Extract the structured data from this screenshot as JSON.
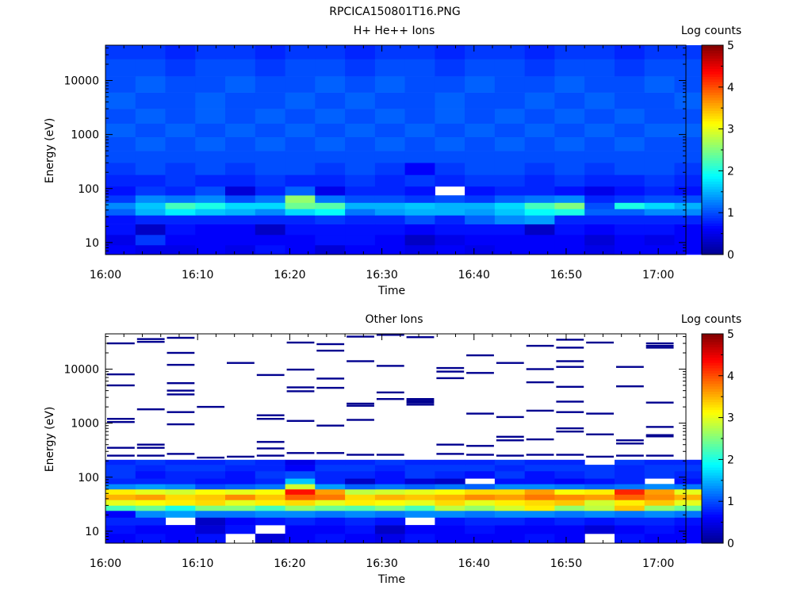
{
  "file_title": "RPCICA150801T16.PNG",
  "colors": {
    "colormap": [
      "#00008f",
      "#0000ff",
      "#0080ff",
      "#00ffff",
      "#80ff80",
      "#ffff00",
      "#ff8000",
      "#ff0000",
      "#800000"
    ],
    "missing": "#ffffff"
  },
  "chart_data": [
    {
      "type": "heatmap",
      "title": "H+ He++ Ions",
      "xlabel": "Time",
      "ylabel": "Energy (eV)",
      "colorbar_label": "Log counts",
      "x_ticks": [
        "16:00",
        "16:10",
        "16:20",
        "16:30",
        "16:40",
        "16:50",
        "17:00"
      ],
      "x_range_minutes": [
        0,
        63
      ],
      "y_scale": "log",
      "y_range": [
        6,
        45000
      ],
      "y_ticks": [
        "10",
        "100",
        "1000",
        "10000"
      ],
      "colorbar_range": [
        0,
        5
      ],
      "colorbar_ticks": [
        "0",
        "1",
        "2",
        "3",
        "4",
        "5"
      ],
      "time_bins_minutes": [
        0,
        3.25,
        6.5,
        9.75,
        13,
        16.25,
        19.5,
        22.75,
        26,
        29.25,
        32.5,
        35.75,
        39,
        42.25,
        45.5,
        48.75,
        52,
        55.25,
        58.5,
        61.75
      ],
      "energy_bands_ev": [
        {
          "lo": 6,
          "hi": 9,
          "log_counts": [
            0.6,
            0.5,
            0.5,
            0.6,
            0.5,
            0.7,
            0.6,
            0.4,
            0.6,
            0.6,
            0.5,
            0.6,
            0.5,
            0.6,
            0.6,
            0.6,
            0.5,
            0.6,
            0.6,
            0.6
          ]
        },
        {
          "lo": 9,
          "hi": 14,
          "log_counts": [
            0.5,
            0.9,
            0.6,
            0.6,
            0.6,
            0.6,
            0.6,
            0.7,
            0.7,
            0.6,
            0.3,
            0.5,
            0.6,
            0.6,
            0.6,
            0.6,
            0.4,
            0.6,
            0.5,
            0.6
          ]
        },
        {
          "lo": 14,
          "hi": 22,
          "log_counts": [
            0.7,
            0.3,
            0.7,
            0.6,
            0.6,
            0.3,
            0.7,
            0.7,
            0.7,
            0.7,
            0.6,
            0.7,
            0.7,
            0.7,
            0.3,
            0.7,
            0.6,
            0.7,
            0.7,
            0.6
          ]
        },
        {
          "lo": 22,
          "hi": 32,
          "log_counts": [
            0.7,
            0.8,
            0.8,
            0.8,
            0.8,
            0.8,
            0.8,
            0.9,
            0.8,
            0.8,
            1.0,
            0.8,
            1.1,
            1.3,
            1.4,
            0.8,
            0.8,
            0.8,
            0.8,
            0.8
          ]
        },
        {
          "lo": 32,
          "hi": 42,
          "log_counts": [
            1.1,
            1.5,
            1.8,
            1.6,
            1.5,
            1.3,
            1.7,
            1.9,
            1.2,
            1.4,
            1.5,
            1.5,
            1.4,
            1.6,
            1.9,
            2.0,
            1.1,
            1.1,
            1.3,
            1.3
          ]
        },
        {
          "lo": 42,
          "hi": 55,
          "log_counts": [
            1.3,
            1.6,
            2.2,
            2.0,
            1.7,
            1.7,
            2.4,
            2.3,
            1.5,
            1.5,
            1.6,
            1.5,
            1.5,
            1.7,
            2.2,
            2.5,
            1.0,
            2.0,
            1.7,
            1.5
          ]
        },
        {
          "lo": 55,
          "hi": 75,
          "log_counts": [
            0.9,
            1.3,
            1.2,
            1.3,
            1.0,
            1.2,
            2.6,
            1.2,
            1.0,
            1.0,
            0.9,
            1.0,
            0.9,
            1.1,
            1.2,
            1.3,
            0.8,
            0.9,
            1.0,
            1.0
          ]
        },
        {
          "lo": 75,
          "hi": 110,
          "log_counts": [
            0.7,
            0.9,
            0.8,
            1.0,
            0.4,
            0.8,
            1.1,
            0.5,
            0.8,
            0.8,
            0.7,
            null,
            0.7,
            0.8,
            0.8,
            0.7,
            0.5,
            0.7,
            0.8,
            0.7
          ]
        },
        {
          "lo": 110,
          "hi": 180,
          "log_counts": [
            0.8,
            0.8,
            0.9,
            0.8,
            0.8,
            0.9,
            0.8,
            0.8,
            0.9,
            0.8,
            0.9,
            0.8,
            0.9,
            0.9,
            0.8,
            0.9,
            0.8,
            0.8,
            0.9,
            0.8
          ]
        },
        {
          "lo": 180,
          "hi": 300,
          "log_counts": [
            0.9,
            1.0,
            0.9,
            1.0,
            0.9,
            1.0,
            1.0,
            0.9,
            1.0,
            0.9,
            0.6,
            0.9,
            1.0,
            1.0,
            0.9,
            1.0,
            0.9,
            1.0,
            1.0,
            0.9
          ]
        },
        {
          "lo": 300,
          "hi": 500,
          "log_counts": [
            1.0,
            1.0,
            1.0,
            1.0,
            1.0,
            1.0,
            1.0,
            1.0,
            1.0,
            1.0,
            1.0,
            1.0,
            1.0,
            1.0,
            1.0,
            1.0,
            1.0,
            1.0,
            1.0,
            1.0
          ]
        },
        {
          "lo": 500,
          "hi": 900,
          "log_counts": [
            1.0,
            1.1,
            1.0,
            1.1,
            1.0,
            1.1,
            1.0,
            1.1,
            1.0,
            1.1,
            1.0,
            1.1,
            1.0,
            1.1,
            1.0,
            1.1,
            1.0,
            1.1,
            1.0,
            1.0
          ]
        },
        {
          "lo": 900,
          "hi": 1600,
          "log_counts": [
            1.1,
            1.0,
            1.1,
            1.0,
            1.1,
            1.0,
            1.1,
            1.0,
            1.1,
            1.0,
            1.1,
            1.0,
            1.1,
            1.0,
            1.1,
            1.0,
            1.1,
            1.0,
            1.1,
            1.1
          ]
        },
        {
          "lo": 1600,
          "hi": 3000,
          "log_counts": [
            1.0,
            1.1,
            1.0,
            1.1,
            1.0,
            1.1,
            1.0,
            1.1,
            1.0,
            1.1,
            1.0,
            1.1,
            1.0,
            1.1,
            1.0,
            1.1,
            1.0,
            1.1,
            1.0,
            1.0
          ]
        },
        {
          "lo": 3000,
          "hi": 6000,
          "log_counts": [
            1.1,
            1.0,
            1.0,
            1.1,
            1.0,
            1.0,
            1.1,
            1.0,
            1.1,
            1.0,
            1.0,
            1.1,
            1.0,
            1.0,
            1.1,
            1.0,
            1.1,
            1.0,
            1.0,
            1.1
          ]
        },
        {
          "lo": 6000,
          "hi": 12000,
          "log_counts": [
            1.0,
            1.1,
            1.0,
            1.0,
            1.1,
            1.0,
            1.0,
            1.1,
            1.0,
            1.1,
            1.0,
            1.0,
            1.1,
            1.0,
            1.0,
            1.1,
            1.0,
            1.0,
            1.1,
            1.0
          ]
        },
        {
          "lo": 12000,
          "hi": 25000,
          "log_counts": [
            1.0,
            1.0,
            0.9,
            1.0,
            1.0,
            0.9,
            1.0,
            1.0,
            0.9,
            1.0,
            1.0,
            0.9,
            1.0,
            1.0,
            0.9,
            1.0,
            1.0,
            0.9,
            1.0,
            1.0
          ]
        },
        {
          "lo": 25000,
          "hi": 45000,
          "log_counts": [
            0.9,
            0.9,
            0.8,
            0.9,
            0.9,
            0.8,
            0.9,
            0.9,
            0.8,
            0.9,
            0.9,
            0.8,
            0.9,
            0.9,
            0.8,
            0.9,
            0.9,
            0.8,
            0.9,
            0.9
          ]
        }
      ]
    },
    {
      "type": "heatmap",
      "title": "Other Ions",
      "xlabel": "Time",
      "ylabel": "Energy (eV)",
      "colorbar_label": "Log counts",
      "x_ticks": [
        "16:00",
        "16:10",
        "16:20",
        "16:30",
        "16:40",
        "16:50",
        "17:00"
      ],
      "x_range_minutes": [
        0,
        63
      ],
      "y_scale": "log",
      "y_range": [
        6,
        45000
      ],
      "y_ticks": [
        "10",
        "100",
        "1000",
        "10000"
      ],
      "colorbar_range": [
        0,
        5
      ],
      "colorbar_ticks": [
        "0",
        "1",
        "2",
        "3",
        "4",
        "5"
      ],
      "time_bins_minutes": [
        0,
        3.25,
        6.5,
        9.75,
        13,
        16.25,
        19.5,
        22.75,
        26,
        29.25,
        32.5,
        35.75,
        39,
        42.25,
        45.5,
        48.75,
        52,
        55.25,
        58.5,
        61.75
      ],
      "energy_bands_ev": [
        {
          "lo": 6,
          "hi": 9,
          "log_counts": [
            0.6,
            0.7,
            0.6,
            0.7,
            null,
            0.4,
            0.6,
            0.7,
            0.6,
            0.5,
            0.7,
            0.6,
            0.6,
            0.6,
            0.7,
            0.6,
            null,
            0.7,
            0.6,
            0.6
          ]
        },
        {
          "lo": 9,
          "hi": 13,
          "log_counts": [
            0.7,
            0.6,
            0.6,
            0.4,
            0.7,
            null,
            0.6,
            0.6,
            0.7,
            0.3,
            0.6,
            0.6,
            0.7,
            0.6,
            0.6,
            0.6,
            0.4,
            0.6,
            0.7,
            0.6
          ]
        },
        {
          "lo": 13,
          "hi": 18,
          "log_counts": [
            0.8,
            0.8,
            null,
            0.3,
            0.6,
            0.7,
            0.8,
            0.7,
            0.8,
            0.7,
            null,
            0.7,
            0.8,
            0.8,
            0.7,
            0.8,
            0.7,
            0.8,
            0.8,
            0.7
          ]
        },
        {
          "lo": 18,
          "hi": 24,
          "log_counts": [
            0.6,
            1.3,
            1.4,
            1.2,
            1.2,
            1.3,
            1.3,
            1.2,
            1.3,
            1.2,
            1.3,
            1.3,
            1.2,
            1.3,
            1.3,
            1.2,
            1.3,
            1.2,
            1.3,
            1.2
          ]
        },
        {
          "lo": 24,
          "hi": 30,
          "log_counts": [
            2.2,
            2.4,
            2.0,
            2.5,
            2.5,
            2.2,
            2.6,
            2.4,
            2.3,
            2.5,
            2.2,
            2.8,
            2.6,
            2.9,
            3.2,
            2.6,
            2.8,
            3.4,
            2.6,
            2.4
          ]
        },
        {
          "lo": 30,
          "hi": 38,
          "log_counts": [
            3.0,
            3.1,
            3.2,
            3.3,
            3.0,
            3.2,
            3.3,
            3.0,
            3.2,
            3.1,
            3.0,
            3.3,
            3.0,
            3.2,
            3.3,
            3.4,
            2.9,
            3.2,
            3.4,
            3.0
          ]
        },
        {
          "lo": 38,
          "hi": 48,
          "log_counts": [
            3.5,
            3.6,
            3.3,
            3.4,
            3.7,
            3.4,
            3.9,
            3.8,
            3.3,
            3.5,
            3.4,
            3.5,
            3.7,
            3.6,
            3.8,
            3.7,
            3.6,
            3.9,
            3.7,
            3.5
          ]
        },
        {
          "lo": 48,
          "hi": 60,
          "log_counts": [
            3.2,
            3.0,
            2.9,
            3.1,
            3.0,
            3.1,
            4.3,
            3.6,
            2.8,
            2.9,
            3.0,
            3.1,
            3.3,
            3.3,
            3.6,
            3.1,
            3.2,
            4.2,
            3.6,
            3.0
          ]
        },
        {
          "lo": 60,
          "hi": 75,
          "log_counts": [
            1.3,
            1.4,
            1.3,
            1.0,
            1.1,
            1.2,
            2.9,
            1.4,
            1.1,
            1.2,
            1.1,
            1.2,
            1.1,
            1.3,
            1.3,
            1.2,
            1.1,
            1.2,
            1.3,
            1.2
          ]
        },
        {
          "lo": 75,
          "hi": 95,
          "log_counts": [
            0.8,
            0.8,
            0.8,
            0.7,
            0.7,
            0.8,
            1.6,
            0.8,
            0.3,
            0.7,
            0.4,
            0.3,
            null,
            0.7,
            0.7,
            0.6,
            0.7,
            0.8,
            null,
            0.7
          ]
        },
        {
          "lo": 95,
          "hi": 130,
          "log_counts": [
            0.9,
            0.7,
            0.8,
            0.8,
            0.7,
            0.9,
            1.0,
            0.8,
            0.8,
            0.7,
            0.9,
            0.8,
            0.7,
            0.9,
            0.7,
            0.8,
            0.9,
            0.8,
            0.9,
            0.8
          ]
        },
        {
          "lo": 130,
          "hi": 170,
          "log_counts": [
            0.9,
            0.8,
            0.9,
            0.9,
            0.8,
            0.8,
            0.6,
            0.9,
            0.9,
            0.8,
            0.9,
            0.9,
            0.9,
            0.8,
            0.9,
            0.9,
            0.9,
            0.8,
            0.9,
            0.9
          ]
        },
        {
          "lo": 170,
          "hi": 210,
          "log_counts": [
            0.8,
            0.9,
            0.8,
            0.8,
            0.9,
            0.8,
            0.5,
            0.8,
            0.8,
            0.9,
            0.8,
            0.8,
            0.8,
            0.9,
            0.8,
            0.8,
            null,
            0.9,
            0.8,
            0.8
          ]
        }
      ],
      "sparse_lines_ev": [
        {
          "time_bin": 0,
          "ev": [
            30000,
            8000,
            5000,
            1200,
            1050,
            350,
            250
          ]
        },
        {
          "time_bin": 1,
          "ev": [
            36000,
            32000,
            1800,
            400,
            350,
            250
          ]
        },
        {
          "time_bin": 2,
          "ev": [
            38000,
            20000,
            12000,
            5500,
            4000,
            3400,
            1600,
            950,
            270
          ]
        },
        {
          "time_bin": 3,
          "ev": [
            2000,
            230
          ]
        },
        {
          "time_bin": 4,
          "ev": [
            13000,
            240
          ]
        },
        {
          "time_bin": 5,
          "ev": [
            7800,
            1400,
            1200,
            450,
            340,
            250
          ]
        },
        {
          "time_bin": 6,
          "ev": [
            31000,
            9800,
            4600,
            3900,
            1100,
            280
          ]
        },
        {
          "time_bin": 7,
          "ev": [
            29000,
            22000,
            6700,
            4500,
            900,
            280
          ]
        },
        {
          "time_bin": 8,
          "ev": [
            40000,
            14000,
            2300,
            2100,
            1150,
            260
          ]
        },
        {
          "time_bin": 9,
          "ev": [
            43000,
            11500,
            3700,
            2800,
            260
          ]
        },
        {
          "time_bin": 10,
          "ev": [
            39000,
            2800,
            2600,
            2400,
            2200
          ]
        },
        {
          "time_bin": 11,
          "ev": [
            10500,
            9000,
            6800,
            400,
            270
          ]
        },
        {
          "time_bin": 12,
          "ev": [
            18000,
            8500,
            1500,
            380,
            260
          ]
        },
        {
          "time_bin": 13,
          "ev": [
            13000,
            1300,
            560,
            480,
            250
          ]
        },
        {
          "time_bin": 14,
          "ev": [
            27000,
            10000,
            5700,
            1700,
            500,
            260
          ]
        },
        {
          "time_bin": 15,
          "ev": [
            35000,
            25000,
            14000,
            11000,
            4700,
            2500,
            1600,
            800,
            700,
            260
          ]
        },
        {
          "time_bin": 16,
          "ev": [
            31000,
            1500,
            620,
            240
          ]
        },
        {
          "time_bin": 17,
          "ev": [
            11000,
            4800,
            480,
            420,
            250
          ]
        },
        {
          "time_bin": 18,
          "ev": [
            30000,
            27000,
            25000,
            2400,
            850,
            600,
            570,
            250
          ]
        }
      ]
    }
  ]
}
